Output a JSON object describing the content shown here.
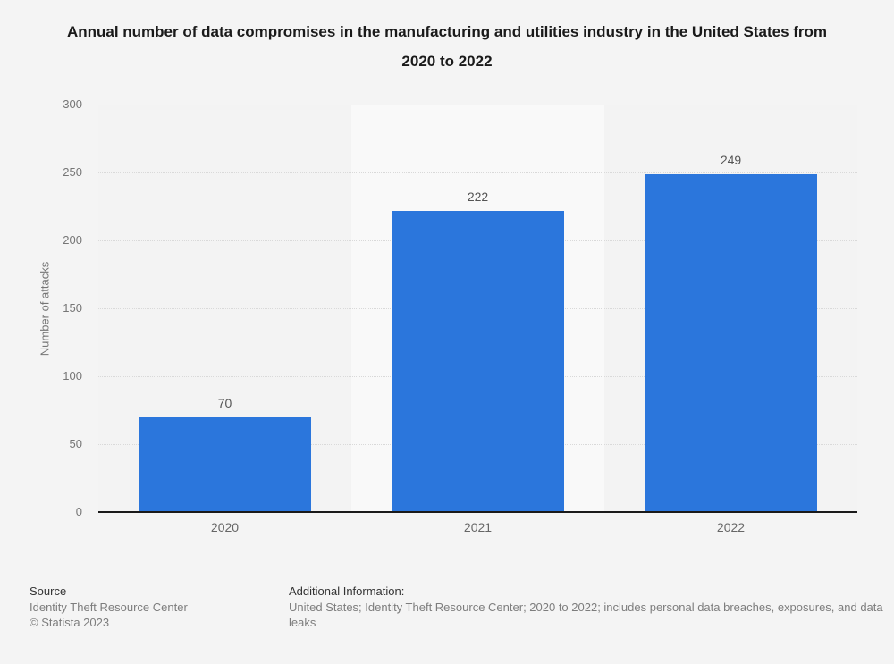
{
  "page": {
    "background_color": "#f4f4f4"
  },
  "chart_data": {
    "type": "bar",
    "title": "Annual number of data compromises in the manufacturing and utilities industry in the United States from 2020 to 2022",
    "categories": [
      "2020",
      "2021",
      "2022"
    ],
    "values": [
      70,
      222,
      249
    ],
    "value_labels": [
      "70",
      "222",
      "249"
    ],
    "xlabel": "",
    "ylabel": "Number of attacks",
    "ylim": [
      0,
      300
    ],
    "yticks": [
      0,
      50,
      100,
      150,
      200,
      250,
      300
    ],
    "grid": "horizontal-dotted",
    "legend": "none",
    "bar_color": "#2b76dc",
    "band_colors": [
      "#f3f3f3",
      "#f9f9f9",
      "#f3f3f3"
    ],
    "gridline_color": "#d9d9d9",
    "axis_line_color": "#1a1a1a"
  },
  "footer": {
    "source_label": "Source",
    "source_lines": [
      "Identity Theft Resource Center",
      "© Statista 2023"
    ],
    "additional_label": "Additional Information:",
    "additional_text": "United States; Identity Theft Resource Center; 2020 to 2022; includes personal data breaches, exposures, and data leaks"
  }
}
